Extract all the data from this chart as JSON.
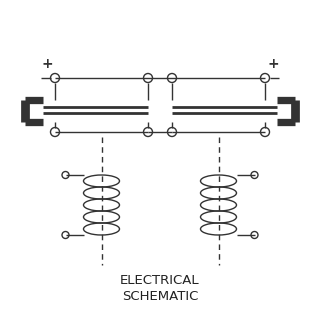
{
  "title_line1": "ELECTRICAL",
  "title_line2": "SCHEMATIC",
  "bg_color": "#ffffff",
  "line_color": "#333333",
  "title_fontsize": 9.5,
  "fig_width": 3.2,
  "fig_height": 3.2,
  "dpi": 100
}
